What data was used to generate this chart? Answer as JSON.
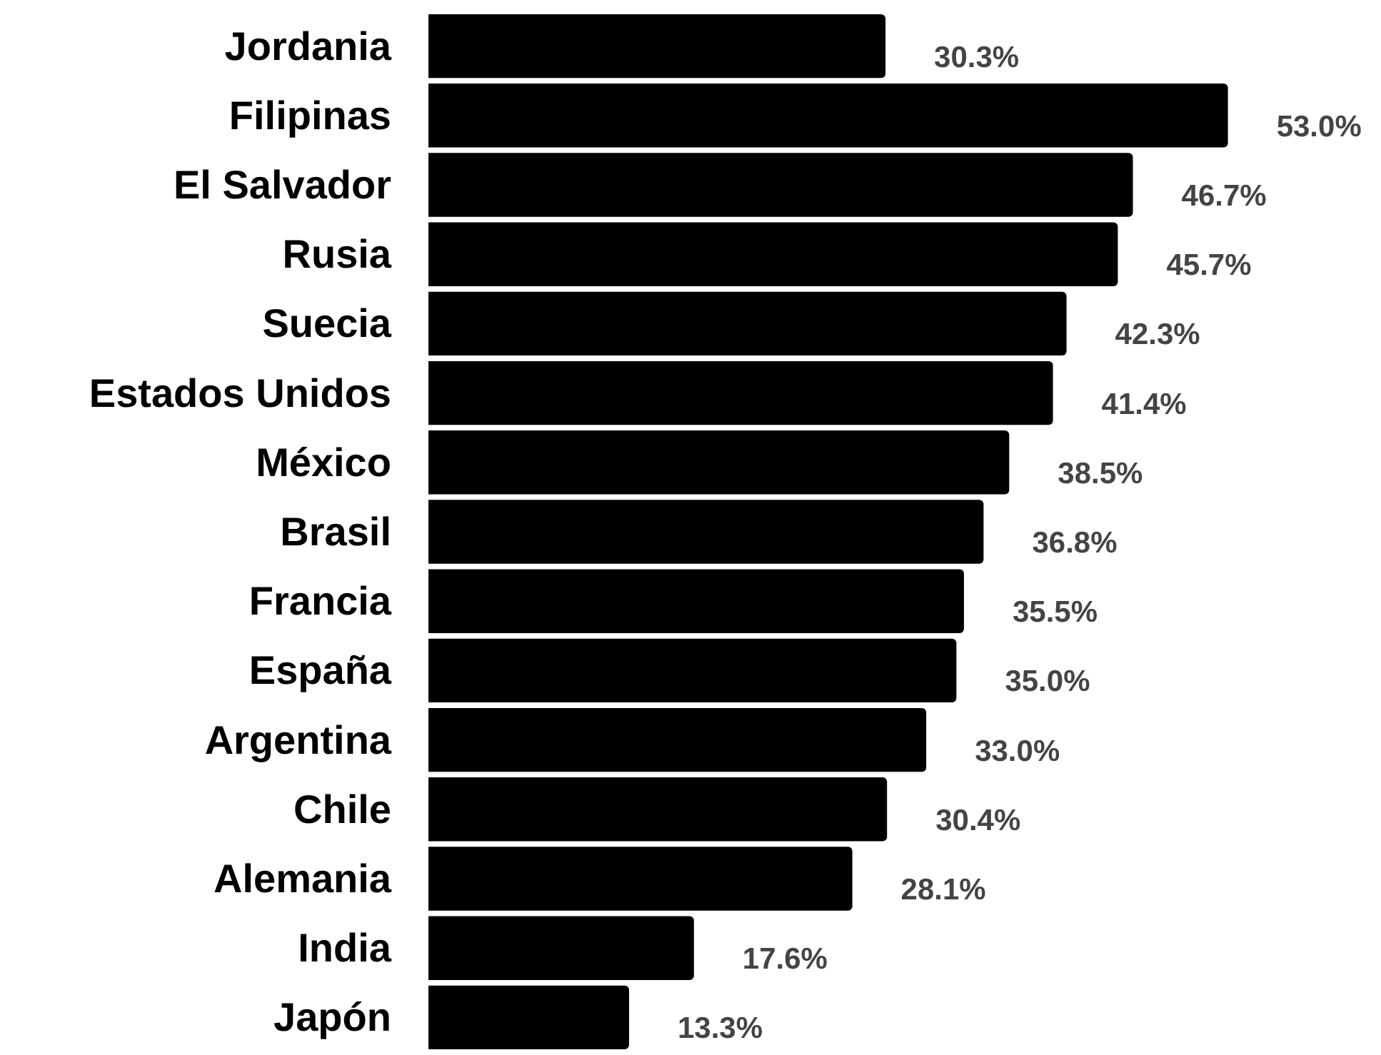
{
  "chart_data": {
    "type": "bar",
    "orientation": "horizontal",
    "categories": [
      "Jordania",
      "Filipinas",
      "El Salvador",
      "Rusia",
      "Suecia",
      "Estados Unidos",
      "México",
      "Brasil",
      "Francia",
      "España",
      "Argentina",
      "Chile",
      "Alemania",
      "India",
      "Japón"
    ],
    "values": [
      30.3,
      53.0,
      46.7,
      45.7,
      42.3,
      41.4,
      38.5,
      36.8,
      35.5,
      35.0,
      33.0,
      30.4,
      28.1,
      17.6,
      13.3
    ],
    "value_labels": [
      "30.3%",
      "53.0%",
      "46.7%",
      "45.7%",
      "42.3%",
      "41.4%",
      "38.5%",
      "36.8%",
      "35.5%",
      "35.0%",
      "33.0%",
      "30.4%",
      "28.1%",
      "17.6%",
      "13.3%"
    ],
    "color": "#000000",
    "grid": false
  }
}
